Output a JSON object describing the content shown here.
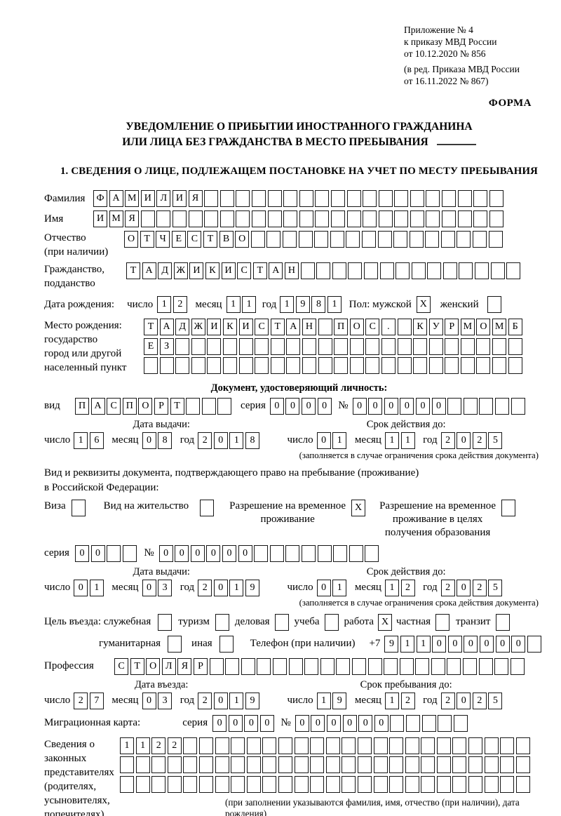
{
  "header": {
    "appendix_line1": "Приложение № 4",
    "appendix_line2": "к приказу МВД России",
    "appendix_line3": "от 10.12.2020 № 856",
    "revision_line1": "(в ред. Приказа МВД России",
    "revision_line2": "от 16.11.2022 № 867)",
    "forma": "ФОРМА"
  },
  "title": {
    "line1": "УВЕДОМЛЕНИЕ О ПРИБЫТИИ ИНОСТРАННОГО ГРАЖДАНИНА",
    "line2": "ИЛИ ЛИЦА БЕЗ ГРАЖДАНСТВА В МЕСТО ПРЕБЫВАНИЯ"
  },
  "section1": {
    "heading": "1. СВЕДЕНИЯ О ЛИЦЕ, ПОДЛЕЖАЩЕМ ПОСТАНОВКЕ НА УЧЕТ ПО МЕСТУ ПРЕБЫВАНИЯ"
  },
  "labels": {
    "surname": "Фамилия",
    "given_name": "Имя",
    "patronymic_1": "Отчество",
    "patronymic_2": "(при наличии)",
    "citizenship_1": "Гражданство,",
    "citizenship_2": "подданство",
    "birth_date": "Дата рождения:",
    "day": "число",
    "month": "месяц",
    "year": "год",
    "sex_male": "Пол: мужской",
    "sex_female": "женский",
    "birthplace_1": "Место рождения:",
    "birthplace_2": "государство",
    "birthplace_3": "город или другой",
    "birthplace_4": "населенный пункт",
    "id_doc_heading": "Документ, удостоверяющий личность:",
    "kind": "вид",
    "series": "серия",
    "number": "№",
    "issue_date": "Дата выдачи:",
    "valid_until": "Срок действия до:",
    "valid_note": "(заполняется в случае ограничения срока действия документа)",
    "permit_line1": "Вид и реквизиты документа, подтверждающего право на пребывание (проживание)",
    "permit_line2": "в Российской Федерации:",
    "visa": "Виза",
    "residence_permit": "Вид на жительство",
    "temp_permit_1": "Разрешение на временное",
    "temp_permit_2": "проживание",
    "temp_edu_1": "Разрешение на временное",
    "temp_edu_2": "проживание в целях",
    "temp_edu_3": "получения образования",
    "purpose": "Цель въезда: служебная",
    "tourism": "туризм",
    "business": "деловая",
    "study": "учеба",
    "work": "работа",
    "private": "частная",
    "transit": "транзит",
    "humanitarian": "гуманитарная",
    "other": "иная",
    "phone": "Телефон (при наличии)",
    "phone_prefix": "+7",
    "profession": "Профессия",
    "entry_date": "Дата въезда:",
    "stay_until": "Срок пребывания до:",
    "migration_card": "Миграционная карта:",
    "legal_rep_1": "Сведения о",
    "legal_rep_2": "законных",
    "legal_rep_3": "представителях",
    "legal_rep_4": "(родителях,",
    "legal_rep_5": "усыновителях,",
    "legal_rep_6": "попечителях)",
    "legal_rep_note": "(при заполнении указываются фамилия, имя, отчество (при наличии), дата рождения)"
  },
  "fields": {
    "surname": {
      "value": "ФАМИЛИЯ",
      "count": 26
    },
    "given_name": {
      "value": "ИМЯ",
      "count": 26
    },
    "patronymic": {
      "value": "ОТЧЕСТВО",
      "count": 24
    },
    "citizenship": {
      "value": "ТАДЖИКИСТАН",
      "count": 25
    },
    "birth_day": {
      "value": "12",
      "count": 2
    },
    "birth_month": {
      "value": "11",
      "count": 2
    },
    "birth_year": {
      "value": "1981",
      "count": 4
    },
    "sex_male": {
      "value": "X",
      "count": 1
    },
    "sex_female": {
      "value": "",
      "count": 1
    },
    "birthplace_row1": {
      "value": "ТАДЖИКИСТАН ПОС. КУРМОМБ",
      "count": 24
    },
    "birthplace_row2": {
      "value": "ЕЗ",
      "count": 24
    },
    "birthplace_row3": {
      "value": "",
      "count": 24
    },
    "id_kind": {
      "value": "ПАСПОРТ",
      "count": 10
    },
    "id_series": {
      "value": "0000",
      "count": 4
    },
    "id_number": {
      "value": "000000",
      "count": 11
    },
    "id_issue_day": {
      "value": "16",
      "count": 2
    },
    "id_issue_month": {
      "value": "08",
      "count": 2
    },
    "id_issue_year": {
      "value": "2018",
      "count": 4
    },
    "id_valid_day": {
      "value": "01",
      "count": 2
    },
    "id_valid_month": {
      "value": "11",
      "count": 2
    },
    "id_valid_year": {
      "value": "2025",
      "count": 4
    },
    "visa_box": {
      "value": "",
      "count": 1
    },
    "residence_box": {
      "value": "",
      "count": 1
    },
    "temp_permit_box": {
      "value": "X",
      "count": 1
    },
    "temp_edu_box": {
      "value": "",
      "count": 1
    },
    "permit_series": {
      "value": "00",
      "count": 4
    },
    "permit_number": {
      "value": "000000",
      "count": 14
    },
    "permit_issue_day": {
      "value": "01",
      "count": 2
    },
    "permit_issue_month": {
      "value": "03",
      "count": 2
    },
    "permit_issue_year": {
      "value": "2019",
      "count": 4
    },
    "permit_valid_day": {
      "value": "01",
      "count": 2
    },
    "permit_valid_month": {
      "value": "12",
      "count": 2
    },
    "permit_valid_year": {
      "value": "2025",
      "count": 4
    },
    "purpose_official": {
      "value": "",
      "count": 1
    },
    "purpose_tourism": {
      "value": "",
      "count": 1
    },
    "purpose_business": {
      "value": "",
      "count": 1
    },
    "purpose_study": {
      "value": "",
      "count": 1
    },
    "purpose_work": {
      "value": "X",
      "count": 1
    },
    "purpose_private": {
      "value": "",
      "count": 1
    },
    "purpose_transit": {
      "value": "",
      "count": 1
    },
    "purpose_humanitarian": {
      "value": "",
      "count": 1
    },
    "purpose_other": {
      "value": "",
      "count": 1
    },
    "phone": {
      "value": "911000000",
      "count": 10
    },
    "profession": {
      "value": "СТОЛЯР",
      "count": 26
    },
    "entry_day": {
      "value": "27",
      "count": 2
    },
    "entry_month": {
      "value": "03",
      "count": 2
    },
    "entry_year": {
      "value": "2019",
      "count": 4
    },
    "stay_day": {
      "value": "19",
      "count": 2
    },
    "stay_month": {
      "value": "12",
      "count": 2
    },
    "stay_year": {
      "value": "2025",
      "count": 4
    },
    "migration_series": {
      "value": "0000",
      "count": 4
    },
    "migration_number": {
      "value": "000000",
      "count": 11
    },
    "legal_rep_row1": {
      "value": "1122",
      "count": 26
    },
    "legal_rep_row2": {
      "value": "",
      "count": 26
    },
    "legal_rep_row3": {
      "value": "",
      "count": 26
    }
  }
}
